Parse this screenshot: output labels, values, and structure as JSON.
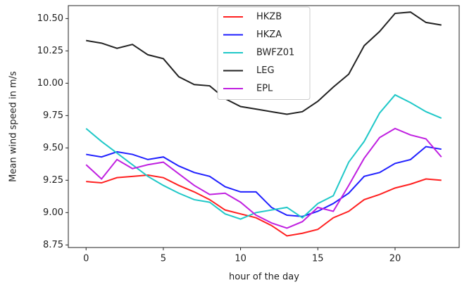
{
  "chart_data": {
    "type": "line",
    "xlabel": "hour of the day",
    "ylabel": "Mean wind speed in m/s",
    "x": [
      0,
      1,
      2,
      3,
      4,
      5,
      6,
      7,
      8,
      9,
      10,
      11,
      12,
      13,
      14,
      15,
      16,
      17,
      18,
      19,
      20,
      21,
      22,
      23
    ],
    "series": [
      {
        "name": "HKZB",
        "color": "#ff2020",
        "values": [
          9.24,
          9.23,
          9.27,
          9.28,
          9.29,
          9.27,
          9.21,
          9.16,
          9.1,
          9.02,
          8.99,
          8.96,
          8.9,
          8.82,
          8.84,
          8.87,
          8.96,
          9.01,
          9.1,
          9.14,
          9.19,
          9.22,
          9.26,
          9.25
        ]
      },
      {
        "name": "HKZA",
        "color": "#2020ff",
        "values": [
          9.45,
          9.43,
          9.47,
          9.45,
          9.41,
          9.43,
          9.36,
          9.31,
          9.28,
          9.2,
          9.16,
          9.16,
          9.04,
          8.98,
          8.97,
          9.01,
          9.07,
          9.15,
          9.28,
          9.31,
          9.38,
          9.41,
          9.51,
          9.49
        ]
      },
      {
        "name": "BWFZ01",
        "color": "#20c8c8",
        "values": [
          9.65,
          9.55,
          9.46,
          9.37,
          9.28,
          9.21,
          9.15,
          9.1,
          9.08,
          8.99,
          8.95,
          9.0,
          9.02,
          9.04,
          8.96,
          9.07,
          9.13,
          9.39,
          9.55,
          9.77,
          9.91,
          9.85,
          9.78,
          9.73
        ]
      },
      {
        "name": "LEG",
        "color": "#222222",
        "values": [
          10.33,
          10.31,
          10.27,
          10.3,
          10.22,
          10.19,
          10.05,
          9.99,
          9.98,
          9.88,
          9.82,
          9.8,
          9.78,
          9.76,
          9.78,
          9.86,
          9.97,
          10.07,
          10.29,
          10.4,
          10.54,
          10.55,
          10.47,
          10.45
        ]
      },
      {
        "name": "EPL",
        "color": "#c020e0",
        "values": [
          9.37,
          9.26,
          9.41,
          9.34,
          9.37,
          9.39,
          9.3,
          9.21,
          9.14,
          9.15,
          9.08,
          8.98,
          8.92,
          8.88,
          8.93,
          9.04,
          9.01,
          9.21,
          9.42,
          9.58,
          9.65,
          9.6,
          9.57,
          9.43
        ]
      }
    ],
    "xlim": [
      -1.15,
      24.15
    ],
    "xticks": [
      0,
      5,
      10,
      15,
      20
    ],
    "ylim": [
      8.73,
      10.6
    ],
    "yticks": [
      8.75,
      {
        "value": 9,
        "label": "9.00"
      },
      9.25,
      {
        "value": 9.5,
        "label": "9.50"
      },
      9.75,
      {
        "value": 10,
        "label": "10.00"
      },
      10.25,
      {
        "value": 10.5,
        "label": "10.50"
      }
    ],
    "legend": "upper center"
  }
}
